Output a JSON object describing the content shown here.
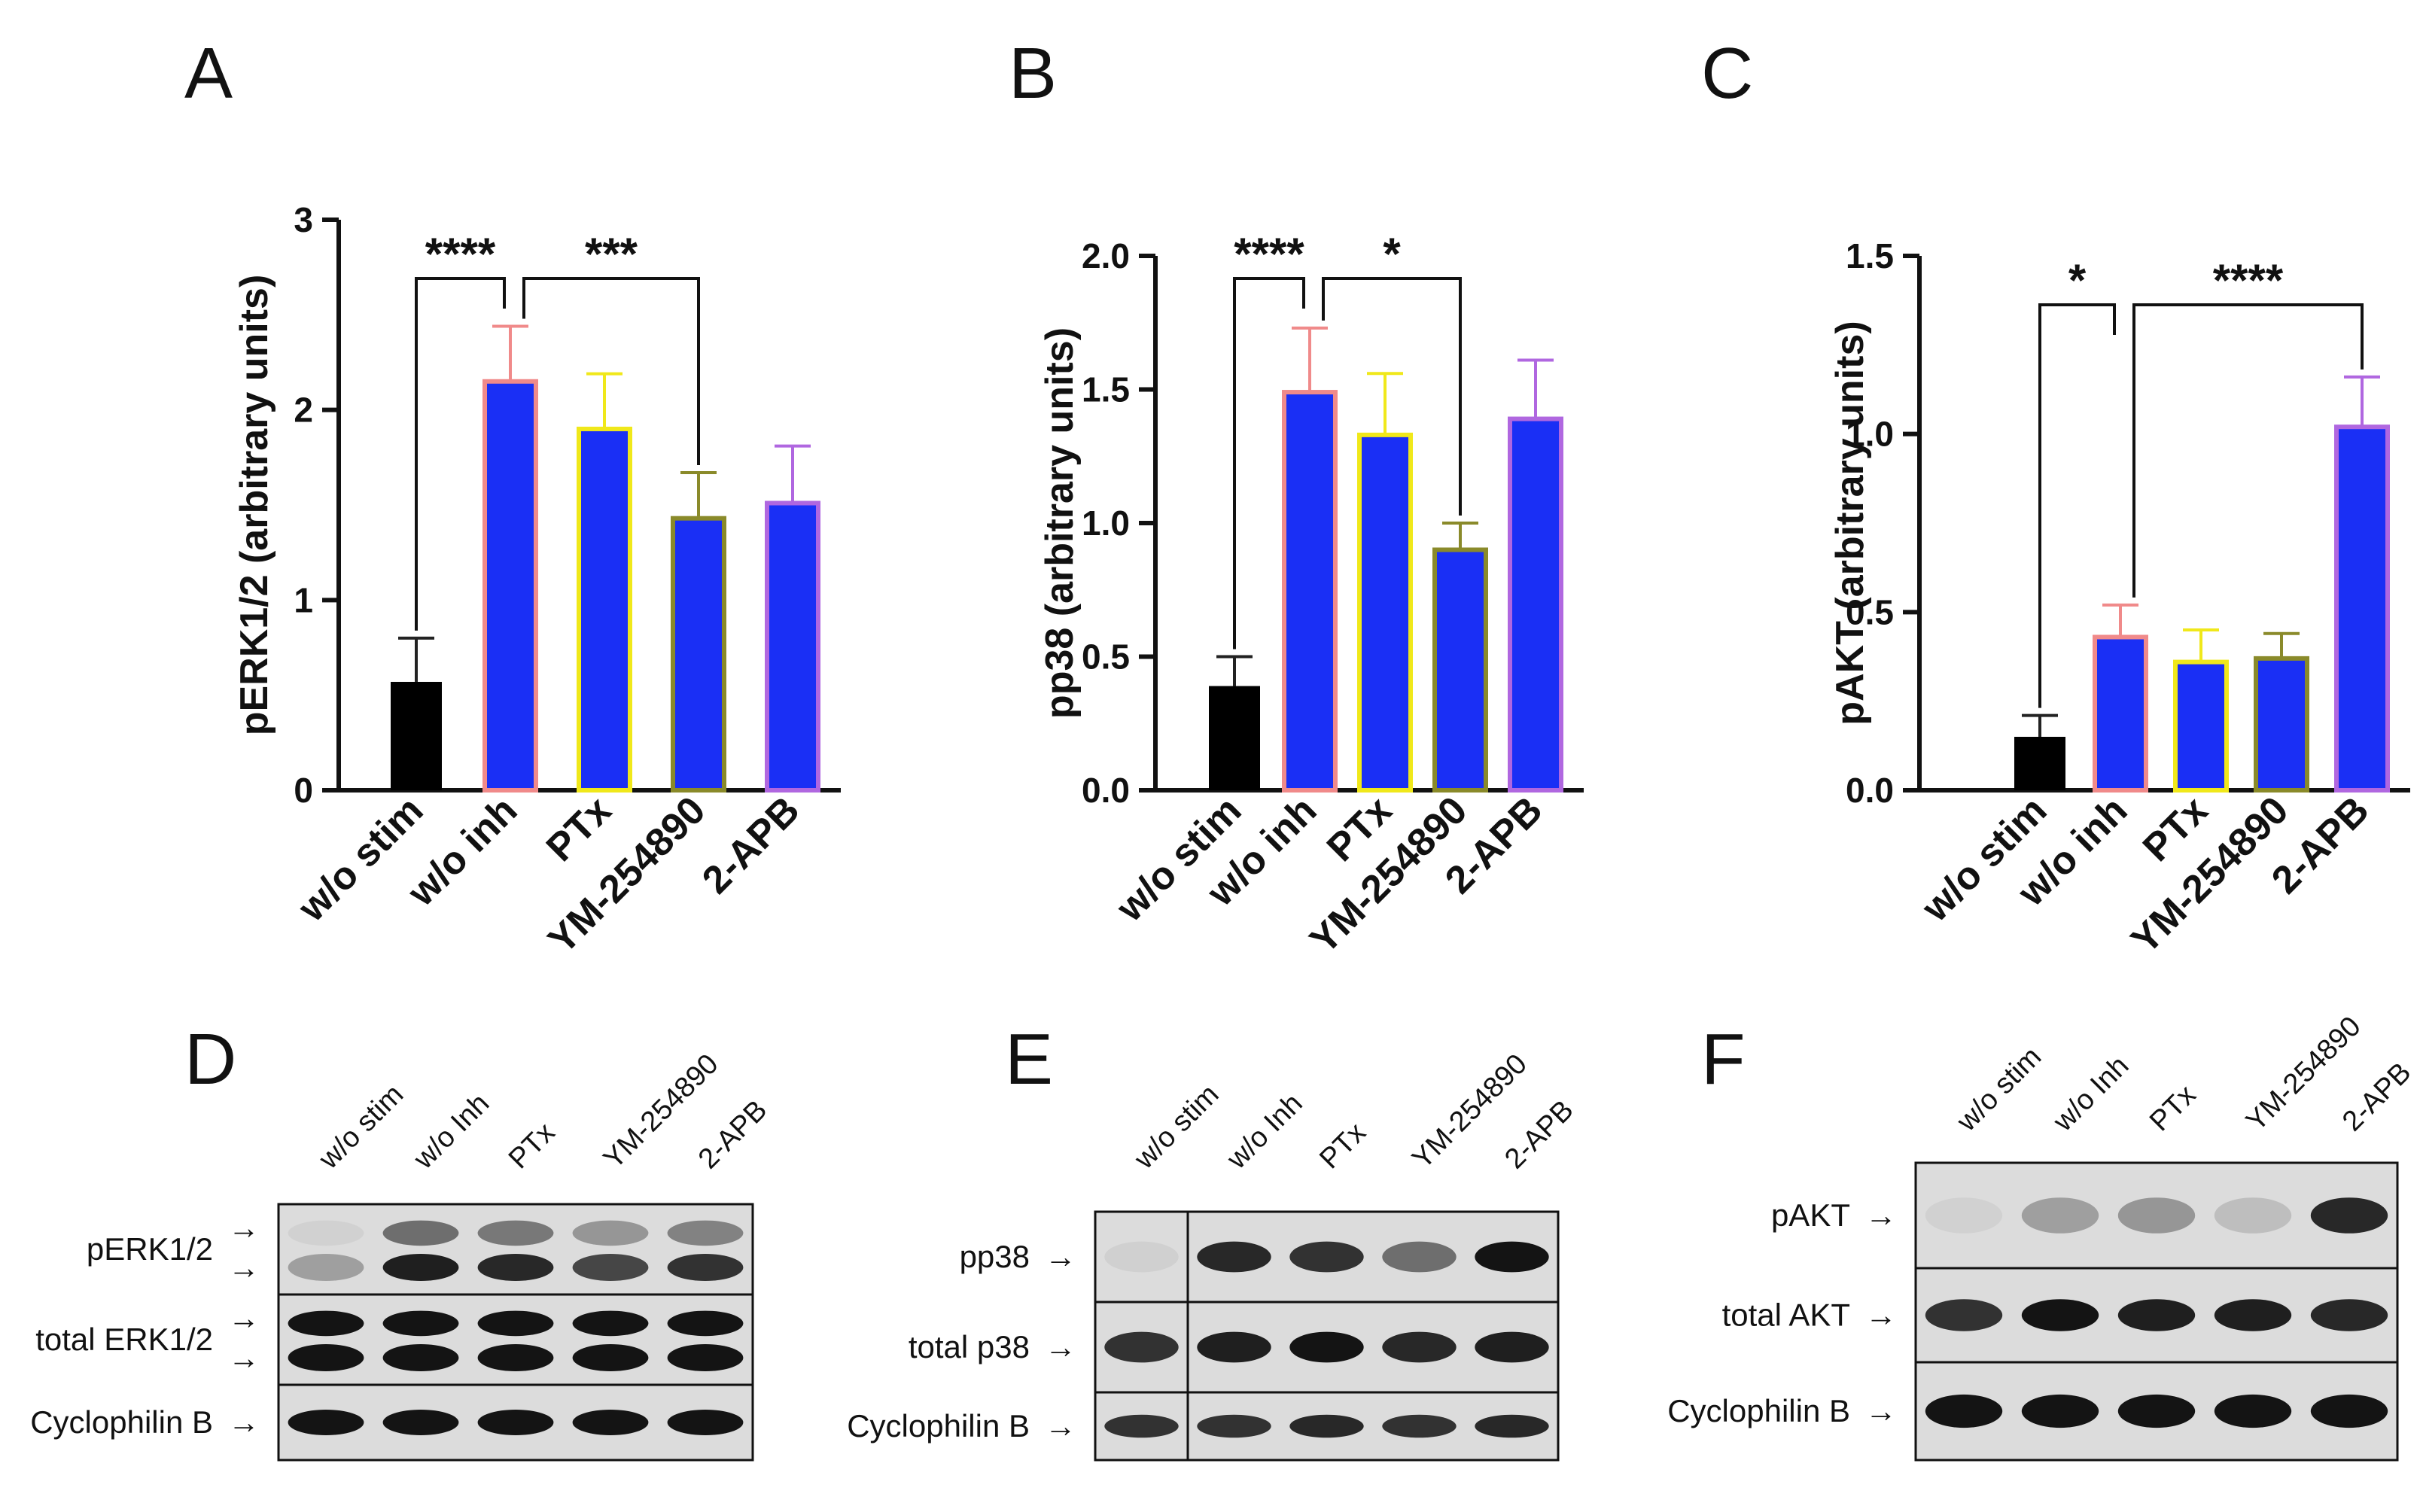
{
  "panel_letters": [
    "A",
    "B",
    "C",
    "D",
    "E",
    "F"
  ],
  "colors": {
    "bar_fill_stim": "#000000",
    "bar_fill": "#1a2ff5",
    "edge_w_o_stim": "#000000",
    "edge_w_o_inh": "#f08a8a",
    "edge_PTx": "#f0e81a",
    "edge_YM": "#8a8a2a",
    "edge_2APB": "#b067e0",
    "err_w_o_stim": "#222222",
    "err_w_o_inh": "#f08a8a",
    "err_PTx": "#f0e81a",
    "err_YM": "#8a8a2a",
    "err_2APB": "#b067e0",
    "axis": "#111111",
    "blot_bg": "#dcdcdc",
    "band": "#141414"
  },
  "chart_data": [
    {
      "panel": "A",
      "type": "bar",
      "ylabel": "pERK1/2 (arbitrary units)",
      "categories": [
        "w/o stim",
        "w/o inh",
        "PTx",
        "YM-254890",
        "2-APB"
      ],
      "values": [
        0.57,
        2.15,
        1.9,
        1.43,
        1.51
      ],
      "errors": [
        0.23,
        0.29,
        0.29,
        0.24,
        0.3
      ],
      "ylim": [
        0,
        3
      ],
      "yticks": [
        "0",
        "1",
        "2",
        "3"
      ],
      "ytick_values": [
        0,
        1,
        2,
        3
      ],
      "significance": [
        {
          "from": 0,
          "to": 1,
          "label": "****"
        },
        {
          "from": 1,
          "to": 3,
          "label": "***"
        }
      ]
    },
    {
      "panel": "B",
      "type": "bar",
      "ylabel": "pp38 (arbitrary units)",
      "categories": [
        "w/o stim",
        "w/o inh",
        "PTx",
        "YM-254890",
        "2-APB"
      ],
      "values": [
        0.39,
        1.49,
        1.33,
        0.9,
        1.39
      ],
      "errors": [
        0.11,
        0.24,
        0.23,
        0.1,
        0.22
      ],
      "ylim": [
        0,
        2.0
      ],
      "yticks": [
        "0.0",
        "0.5",
        "1.0",
        "1.5",
        "2.0"
      ],
      "ytick_values": [
        0,
        0.5,
        1.0,
        1.5,
        2.0
      ],
      "significance": [
        {
          "from": 0,
          "to": 1,
          "label": "****"
        },
        {
          "from": 1,
          "to": 3,
          "label": "*"
        }
      ]
    },
    {
      "panel": "C",
      "type": "bar",
      "ylabel": "pAKT (arbitrary units)",
      "categories": [
        "w/o stim",
        "w/o inh",
        "PTx",
        "YM-254890",
        "2-APB"
      ],
      "values": [
        0.15,
        0.43,
        0.36,
        0.37,
        1.02
      ],
      "errors": [
        0.06,
        0.09,
        0.09,
        0.07,
        0.14
      ],
      "ylim": [
        0,
        1.5
      ],
      "yticks": [
        "0.0",
        "0.5",
        "1.0",
        "1.5"
      ],
      "ytick_values": [
        0,
        0.5,
        1.0,
        1.5
      ],
      "significance": [
        {
          "from": 0,
          "to": 1,
          "label": "*"
        },
        {
          "from": 1,
          "to": 4,
          "label": "****"
        }
      ]
    }
  ],
  "blots": [
    {
      "panel": "D",
      "lanes": [
        "w/o stim",
        "w/o Inh",
        "PTx",
        "YM-254890",
        "2-APB"
      ],
      "rows": [
        {
          "label": "pERK1/2",
          "doublet": true,
          "intensities": [
            0.3,
            0.95,
            0.9,
            0.75,
            0.85
          ],
          "upper": [
            0.05,
            0.55,
            0.5,
            0.35,
            0.45
          ]
        },
        {
          "label": "total ERK1/2",
          "doublet": true,
          "intensities": [
            1,
            1,
            1,
            1,
            1
          ],
          "upper": [
            1,
            1,
            1,
            1,
            1
          ]
        },
        {
          "label": "Cyclophilin B",
          "doublet": false,
          "intensities": [
            1,
            1,
            1,
            1,
            1
          ]
        }
      ]
    },
    {
      "panel": "E",
      "lanes": [
        "w/o stim",
        "w/o Inh",
        "PTx",
        "YM-254890",
        "2-APB"
      ],
      "rows": [
        {
          "label": "pp38",
          "doublet": false,
          "intensities": [
            0.06,
            0.9,
            0.85,
            0.55,
            1
          ]
        },
        {
          "label": "total p38",
          "doublet": false,
          "intensities": [
            0.85,
            0.95,
            1,
            0.9,
            0.95
          ]
        },
        {
          "label": "Cyclophilin B",
          "doublet": false,
          "intensities": [
            0.85,
            0.85,
            0.9,
            0.85,
            0.9
          ]
        }
      ]
    },
    {
      "panel": "F",
      "lanes": [
        "w/o stim",
        "w/o Inh",
        "PTx",
        "YM-254890",
        "2-APB"
      ],
      "rows": [
        {
          "label": "pAKT",
          "doublet": false,
          "intensities": [
            0.05,
            0.3,
            0.35,
            0.15,
            0.9
          ]
        },
        {
          "label": "total AKT",
          "doublet": false,
          "intensities": [
            0.85,
            1,
            0.95,
            0.95,
            0.9
          ]
        },
        {
          "label": "Cyclophilin B",
          "doublet": false,
          "intensities": [
            1,
            1,
            1,
            1,
            1
          ]
        }
      ]
    }
  ]
}
